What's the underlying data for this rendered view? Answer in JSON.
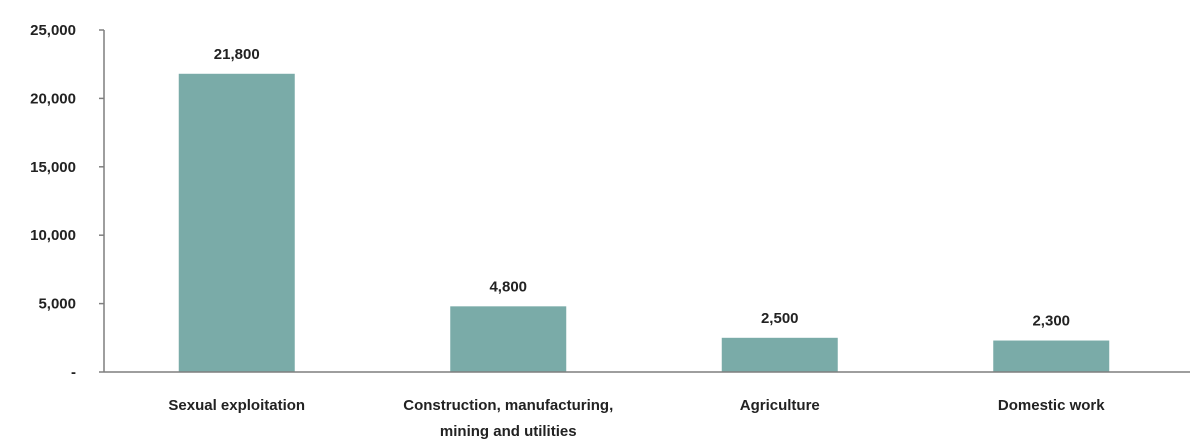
{
  "chart_data": {
    "type": "bar",
    "title": "",
    "xlabel": "",
    "ylabel": "",
    "categories": [
      [
        "Sexual exploitation"
      ],
      [
        "Construction, manufacturing,",
        "mining and utilities"
      ],
      [
        "Agriculture"
      ],
      [
        "Domestic work"
      ]
    ],
    "values": [
      21800,
      4800,
      2500,
      2300
    ],
    "value_labels": [
      "21,800",
      "4,800",
      "2,500",
      "2,300"
    ],
    "ylim": [
      0,
      25000
    ],
    "yticks": [
      0,
      5000,
      10000,
      15000,
      20000,
      25000
    ],
    "ytick_labels": [
      "-",
      "5,000",
      "10,000",
      "15,000",
      "20,000",
      "25,000"
    ],
    "grid": false,
    "legend": "none",
    "colors": {
      "bar": "#7aaba8",
      "axis": "#7f7f7f",
      "text": "#222222"
    }
  }
}
